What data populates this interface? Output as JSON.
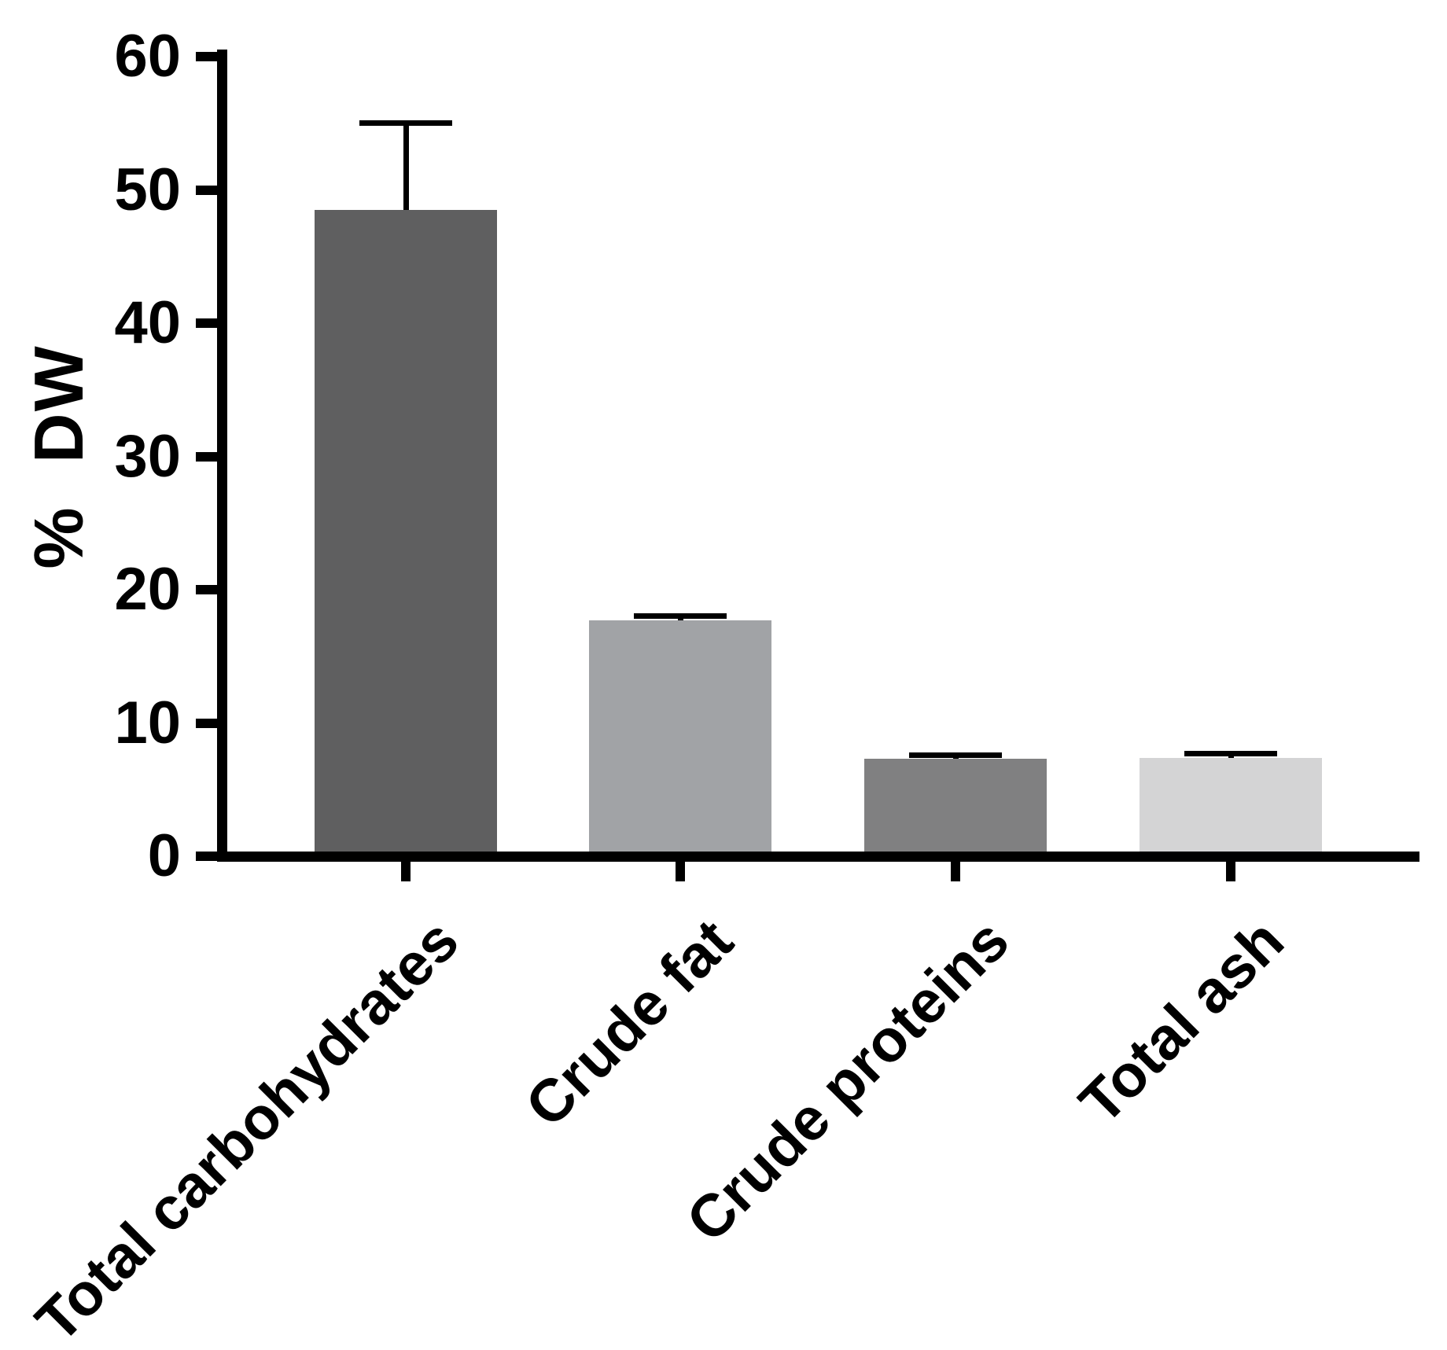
{
  "chart_data": {
    "type": "bar",
    "title": "",
    "xlabel": "",
    "ylabel": "% DW",
    "ylim": [
      0,
      60
    ],
    "yticks": [
      0,
      10,
      20,
      30,
      40,
      50,
      60
    ],
    "grid": false,
    "legend": "none",
    "categories": [
      "Total carbohydrates",
      "Crude fat",
      "Crude proteins",
      "Total ash"
    ],
    "values": [
      48.5,
      17.7,
      7.3,
      7.4
    ],
    "errors_plus": [
      6.5,
      0.3,
      0.3,
      0.3
    ],
    "error_bar_tops": [
      55.0,
      18.0,
      7.6,
      7.7
    ],
    "bar_colors": [
      "#5F5F60",
      "#A1A3A6",
      "#808081",
      "#D4D4D5"
    ],
    "error_color": "#000000",
    "axis_color": "#000000",
    "background_color": "#ffffff"
  }
}
